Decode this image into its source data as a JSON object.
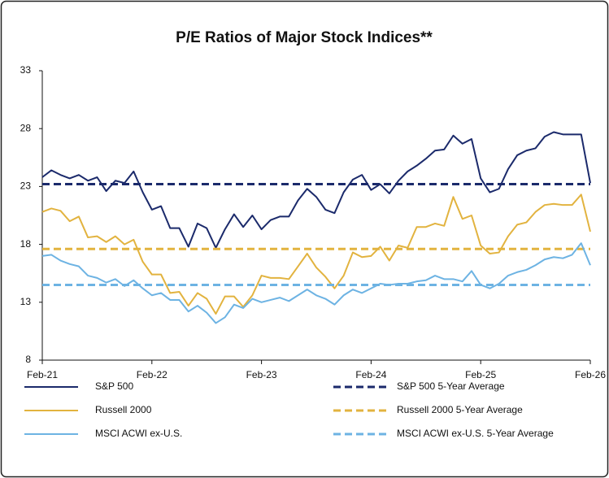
{
  "chart_data": {
    "type": "line",
    "title": "P/E Ratios of Major Stock Indices**",
    "x": [
      "2021-02",
      "2021-03",
      "2021-04",
      "2021-05",
      "2021-06",
      "2021-07",
      "2021-08",
      "2021-09",
      "2021-10",
      "2021-11",
      "2021-12",
      "2022-01",
      "2022-02",
      "2022-03",
      "2022-04",
      "2022-05",
      "2022-06",
      "2022-07",
      "2022-08",
      "2022-09",
      "2022-10",
      "2022-11",
      "2022-12",
      "2023-01",
      "2023-02",
      "2023-03",
      "2023-04",
      "2023-05",
      "2023-06",
      "2023-07",
      "2023-08",
      "2023-09",
      "2023-10",
      "2023-11",
      "2023-12",
      "2024-01",
      "2024-02",
      "2024-03",
      "2024-04",
      "2024-05",
      "2024-06",
      "2024-07",
      "2024-08",
      "2024-09",
      "2024-10",
      "2024-11",
      "2024-12",
      "2025-01",
      "2025-02",
      "2025-03",
      "2025-04",
      "2025-05",
      "2025-06",
      "2025-07",
      "2025-08",
      "2025-09",
      "2025-10",
      "2025-11",
      "2025-12",
      "2026-01",
      "2026-02"
    ],
    "xlim": [
      "2021-02",
      "2026-02"
    ],
    "xticks": [
      {
        "value": "2021-02",
        "label": "Feb-21"
      },
      {
        "value": "2022-02",
        "label": "Feb-22"
      },
      {
        "value": "2023-02",
        "label": "Feb-23"
      },
      {
        "value": "2024-02",
        "label": "Feb-24"
      },
      {
        "value": "2025-02",
        "label": "Feb-25"
      },
      {
        "value": "2026-02",
        "label": "Feb-26"
      }
    ],
    "ylim": [
      8,
      33
    ],
    "yticks": [
      8,
      13,
      18,
      23,
      28,
      33
    ],
    "grid": false,
    "series": [
      {
        "name": "S&P 500",
        "color": "#1b2a6b",
        "values": [
          23.8,
          24.4,
          24.0,
          23.7,
          24.0,
          23.5,
          23.8,
          22.6,
          23.5,
          23.3,
          24.3,
          22.5,
          21.0,
          21.3,
          19.4,
          19.4,
          17.8,
          19.8,
          19.4,
          17.7,
          19.3,
          20.6,
          19.5,
          20.5,
          19.3,
          20.1,
          20.4,
          20.4,
          21.8,
          22.8,
          22.1,
          21.0,
          20.7,
          22.5,
          23.6,
          24.0,
          22.7,
          23.2,
          22.4,
          23.5,
          24.3,
          24.8,
          25.4,
          26.1,
          26.2,
          27.4,
          26.7,
          27.1,
          23.7,
          22.5,
          22.8,
          24.5,
          25.7,
          26.1,
          26.3,
          27.3,
          27.7,
          27.5,
          27.5,
          27.5,
          23.3
        ]
      },
      {
        "name": "S&P 500 5-Year Average",
        "color": "#1b2a6b",
        "dashed": true,
        "value": 23.2
      },
      {
        "name": "Russell 2000",
        "color": "#e2b33f",
        "values": [
          20.8,
          21.1,
          20.9,
          20.0,
          20.4,
          18.6,
          18.7,
          18.2,
          18.7,
          18.0,
          18.4,
          16.5,
          15.4,
          15.4,
          13.8,
          13.9,
          12.7,
          13.8,
          13.3,
          12.0,
          13.5,
          13.5,
          12.6,
          13.6,
          15.3,
          15.1,
          15.1,
          15.0,
          16.1,
          17.2,
          16.0,
          15.2,
          14.2,
          15.3,
          17.3,
          16.9,
          17.0,
          17.8,
          16.6,
          17.9,
          17.7,
          19.5,
          19.5,
          19.8,
          19.6,
          22.1,
          20.2,
          20.5,
          17.9,
          17.2,
          17.3,
          18.7,
          19.7,
          19.9,
          20.8,
          21.4,
          21.5,
          21.4,
          21.4,
          22.3,
          19.1
        ]
      },
      {
        "name": "Russell 2000 5-Year Average",
        "color": "#e2b33f",
        "dashed": true,
        "value": 17.6
      },
      {
        "name": "MSCI ACWI ex-U.S.",
        "color": "#6db3e3",
        "values": [
          17.0,
          17.1,
          16.6,
          16.3,
          16.1,
          15.3,
          15.1,
          14.7,
          15.0,
          14.4,
          14.9,
          14.2,
          13.6,
          13.8,
          13.2,
          13.2,
          12.2,
          12.7,
          12.1,
          11.2,
          11.7,
          12.8,
          12.5,
          13.3,
          13.0,
          13.2,
          13.4,
          13.1,
          13.6,
          14.1,
          13.6,
          13.3,
          12.8,
          13.6,
          14.1,
          13.8,
          14.2,
          14.6,
          14.5,
          14.6,
          14.6,
          14.8,
          14.9,
          15.3,
          15.0,
          15.0,
          14.8,
          15.7,
          14.5,
          14.2,
          14.6,
          15.3,
          15.6,
          15.8,
          16.2,
          16.7,
          16.9,
          16.8,
          17.1,
          18.1,
          16.2
        ]
      },
      {
        "name": "MSCI ACWI ex-U.S. 5-Year Average",
        "color": "#6db3e3",
        "dashed": true,
        "value": 14.5
      }
    ]
  }
}
